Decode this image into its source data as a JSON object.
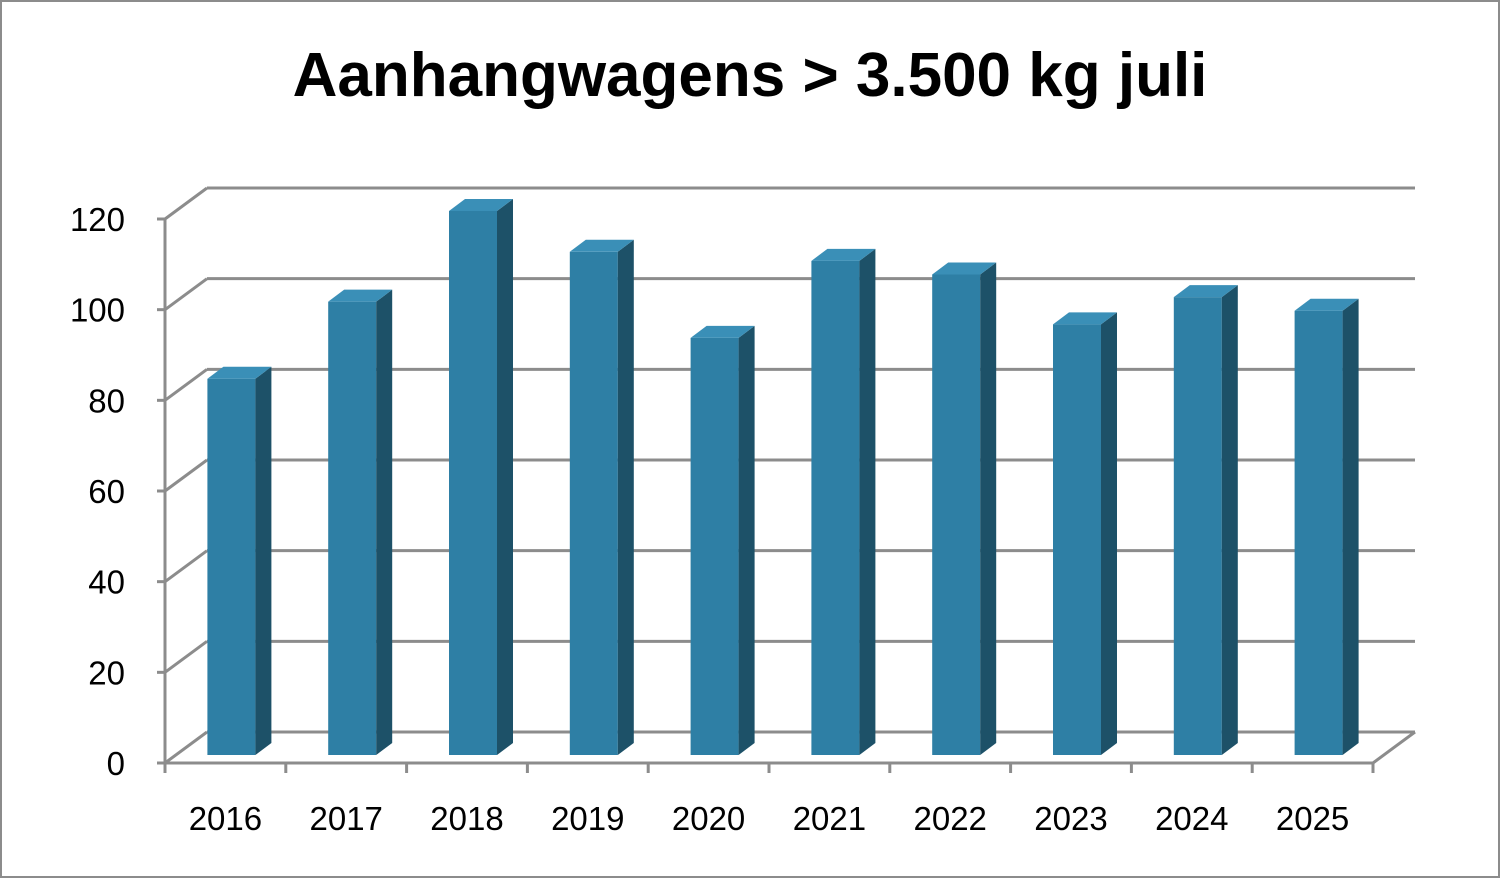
{
  "chart_data": {
    "type": "bar",
    "title": "Aanhangwagens > 3.500 kg juli",
    "categories": [
      "2016",
      "2017",
      "2018",
      "2019",
      "2020",
      "2021",
      "2022",
      "2023",
      "2024",
      "2025"
    ],
    "values": [
      83,
      100,
      120,
      111,
      92,
      109,
      106,
      95,
      101,
      98
    ],
    "xlabel": "",
    "ylabel": "",
    "ylim": [
      0,
      120
    ],
    "yticks": [
      "0",
      "20",
      "40",
      "60",
      "80",
      "100",
      "120"
    ],
    "grid": true,
    "colors": {
      "bar_front": "#2e7fa5",
      "bar_side": "#1d5168",
      "bar_top": "#3a8fb7",
      "grid": "#8c8c8c",
      "frame": "#8c8c8c"
    }
  }
}
